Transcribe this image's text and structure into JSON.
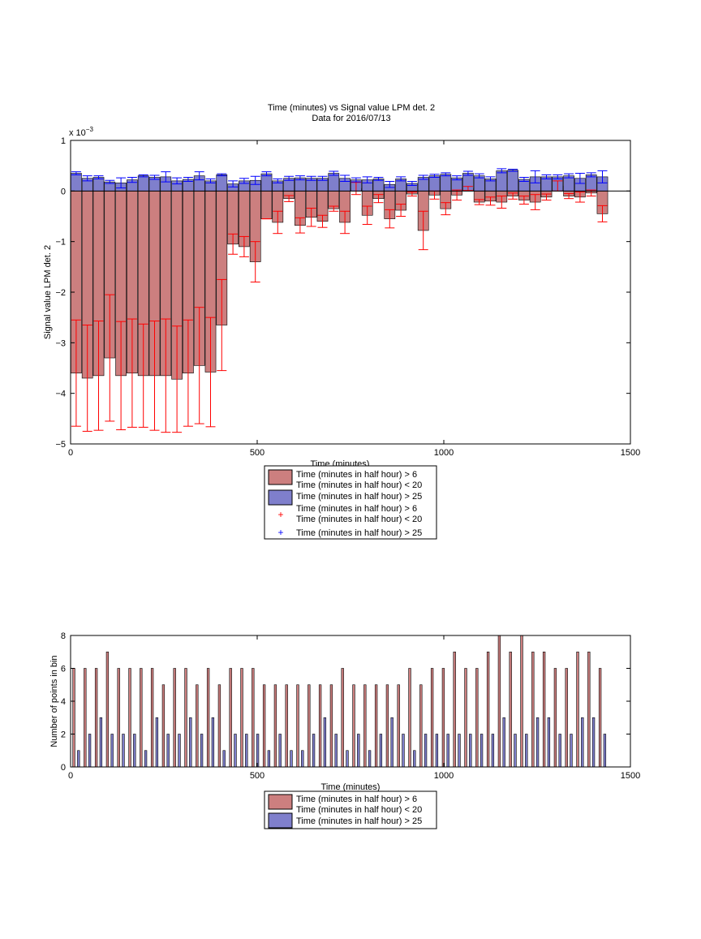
{
  "top_chart": {
    "title_line1": "Time (minutes) vs Signal value LPM det. 2",
    "title_line2": "Data for 2016/07/13",
    "xlabel": "Time (minutes)",
    "ylabel": "Signal value LPM det. 2",
    "exponent_label": "x 10",
    "exponent_power": "−3",
    "y_tick_labels": [
      "1",
      "0",
      "−1",
      "−2",
      "−3",
      "−4",
      "−5"
    ],
    "x_tick_labels": [
      "0",
      "500",
      "1000",
      "1500"
    ],
    "legend": [
      "Time (minutes in half hour) > 6",
      "Time (minutes in half hour) < 20",
      "Time (minutes in half hour) > 25",
      "Time (minutes in half hour) > 6",
      "Time (minutes in half hour) < 20",
      "Time (minutes in half hour) > 25"
    ]
  },
  "bottom_chart": {
    "xlabel": "Time (minutes)",
    "ylabel": "Number of points in bin",
    "y_tick_labels": [
      "0",
      "2",
      "4",
      "6",
      "8"
    ],
    "x_tick_labels": [
      "0",
      "500",
      "1000",
      "1500"
    ],
    "legend": [
      "Time (minutes in half hour) > 6",
      "Time (minutes in half hour) < 20",
      "Time (minutes in half hour) > 25"
    ]
  },
  "colors": {
    "red_bar": "#cc7f7f",
    "blue_bar": "#7f7fcc",
    "red_err": "#ff0000",
    "blue_err": "#0000ff"
  },
  "chart_data": [
    {
      "type": "bar",
      "title": "Time (minutes) vs Signal value LPM det. 2\nData for 2016/07/13",
      "xlabel": "Time (minutes)",
      "ylabel": "Signal value LPM det. 2",
      "y_scale_factor": "x 10^-3",
      "xlim": [
        0,
        1500
      ],
      "ylim": [
        -5,
        1
      ],
      "grid": false,
      "legend_position": "below",
      "x": [
        15,
        45,
        75,
        105,
        135,
        165,
        195,
        225,
        255,
        285,
        315,
        345,
        375,
        405,
        435,
        465,
        495,
        525,
        555,
        585,
        615,
        645,
        675,
        705,
        735,
        765,
        795,
        825,
        855,
        885,
        915,
        945,
        975,
        1005,
        1035,
        1065,
        1095,
        1125,
        1155,
        1185,
        1215,
        1245,
        1275,
        1305,
        1335,
        1365,
        1395,
        1425
      ],
      "series": [
        {
          "name": "Time (minutes in half hour) > 6",
          "values": [
            -3.6,
            -3.7,
            -3.65,
            -3.3,
            -3.65,
            -3.6,
            -3.65,
            -3.65,
            -3.65,
            -3.72,
            -3.6,
            -3.45,
            -3.58,
            -2.65,
            -1.05,
            -1.1,
            -1.4,
            -0.55,
            -0.62,
            -0.15,
            -0.68,
            -0.52,
            -0.6,
            -0.35,
            -0.62,
            0.05,
            -0.48,
            -0.15,
            -0.55,
            -0.38,
            -0.06,
            -0.78,
            -0.08,
            -0.35,
            -0.08,
            0.05,
            -0.22,
            -0.2,
            -0.22,
            -0.1,
            -0.18,
            -0.22,
            -0.12,
            0.1,
            -0.1,
            -0.12,
            -0.04,
            -0.45
          ],
          "errors": [
            1.05,
            1.05,
            1.08,
            1.25,
            1.07,
            1.07,
            1.02,
            1.08,
            1.12,
            1.05,
            1.05,
            1.15,
            1.08,
            0.9,
            0.2,
            0.2,
            0.4,
            0.0,
            0.22,
            0.06,
            0.15,
            0.18,
            0.12,
            0.05,
            0.22,
            0.12,
            0.18,
            0.08,
            0.18,
            0.12,
            0.04,
            0.38,
            0.08,
            0.12,
            0.1,
            0.04,
            0.05,
            0.08,
            0.12,
            0.06,
            0.08,
            0.15,
            0.06,
            0.1,
            0.05,
            0.1,
            0.06,
            0.16
          ]
        },
        {
          "name": "Time (minutes in half hour) > 25",
          "values": [
            0.35,
            0.25,
            0.27,
            0.18,
            0.16,
            0.22,
            0.3,
            0.27,
            0.28,
            0.2,
            0.23,
            0.3,
            0.2,
            0.32,
            0.14,
            0.2,
            0.21,
            0.34,
            0.2,
            0.25,
            0.26,
            0.25,
            0.25,
            0.35,
            0.25,
            0.22,
            0.22,
            0.24,
            0.13,
            0.24,
            0.15,
            0.27,
            0.3,
            0.33,
            0.26,
            0.35,
            0.3,
            0.24,
            0.4,
            0.41,
            0.23,
            0.28,
            0.28,
            0.28,
            0.3,
            0.25,
            0.32,
            0.28
          ],
          "errors": [
            0.03,
            0.05,
            0.03,
            0.03,
            0.1,
            0.05,
            0.02,
            0.04,
            0.1,
            0.06,
            0.04,
            0.08,
            0.04,
            0.02,
            0.06,
            0.05,
            0.08,
            0.04,
            0.04,
            0.04,
            0.04,
            0.04,
            0.04,
            0.04,
            0.06,
            0.04,
            0.06,
            0.03,
            0.06,
            0.04,
            0.04,
            0.04,
            0.03,
            0.03,
            0.04,
            0.04,
            0.04,
            0.04,
            0.04,
            0.02,
            0.04,
            0.12,
            0.04,
            0.04,
            0.04,
            0.1,
            0.04,
            0.12
          ]
        }
      ]
    },
    {
      "type": "bar",
      "xlabel": "Time (minutes)",
      "ylabel": "Number of points in bin",
      "xlim": [
        0,
        1500
      ],
      "ylim": [
        0,
        8
      ],
      "grid": false,
      "legend_position": "below",
      "x": [
        15,
        45,
        75,
        105,
        135,
        165,
        195,
        225,
        255,
        285,
        315,
        345,
        375,
        405,
        435,
        465,
        495,
        525,
        555,
        585,
        615,
        645,
        675,
        705,
        735,
        765,
        795,
        825,
        855,
        885,
        915,
        945,
        975,
        1005,
        1035,
        1065,
        1095,
        1125,
        1155,
        1185,
        1215,
        1245,
        1275,
        1305,
        1335,
        1365,
        1395,
        1425
      ],
      "series": [
        {
          "name": "Time (minutes in half hour) > 6",
          "values": [
            6,
            6,
            6,
            7,
            6,
            6,
            6,
            6,
            5,
            6,
            6,
            5,
            6,
            5,
            6,
            6,
            6,
            5,
            5,
            5,
            5,
            5,
            5,
            5,
            6,
            5,
            5,
            5,
            5,
            5,
            6,
            5,
            6,
            6,
            7,
            6,
            6,
            7,
            8,
            7,
            8,
            7,
            7,
            6,
            6,
            7,
            7,
            6
          ]
        },
        {
          "name": "Time (minutes in half hour) > 25",
          "values": [
            1,
            2,
            3,
            2,
            2,
            2,
            1,
            3,
            2,
            2,
            3,
            2,
            3,
            1,
            2,
            2,
            2,
            1,
            2,
            1,
            1,
            2,
            3,
            2,
            1,
            2,
            1,
            2,
            3,
            2,
            1,
            2,
            2,
            2,
            2,
            2,
            2,
            2,
            3,
            2,
            2,
            3,
            3,
            2,
            2,
            3,
            3,
            2
          ]
        }
      ]
    }
  ]
}
